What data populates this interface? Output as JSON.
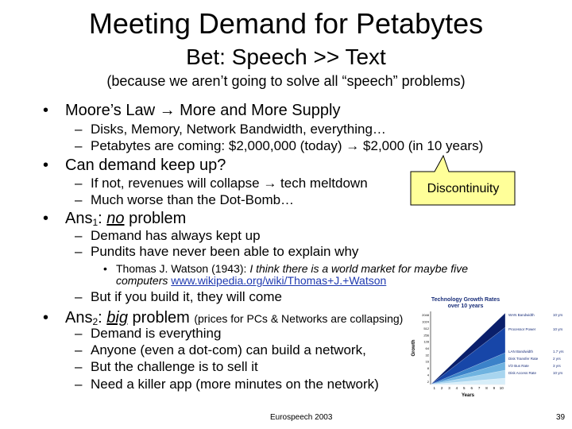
{
  "slide": {
    "title": "Meeting Demand for Petabytes",
    "subtitle": "Bet: Speech >> Text",
    "note": "(because we aren’t going to solve all “speech” problems)"
  },
  "bullets": [
    {
      "text": "Moore’s Law → More and More Supply",
      "subs": [
        "Disks, Memory, Network Bandwidth, everything…",
        "Petabytes are coming: $2,000,000 (today) → $2,000 (in 10 years)"
      ]
    },
    {
      "text": "Can demand keep up?",
      "subs": [
        "If not, revenues will collapse → tech meltdown",
        "Much worse than the Dot-Bomb…"
      ]
    },
    {
      "prefix": "Ans",
      "sub": "1",
      "mid": ": ",
      "emph": "no",
      "suffix": " problem",
      "subs": [
        "Demand has always kept up",
        "Pundits have never been able to explain why"
      ],
      "subsub": {
        "lead": "Thomas J. Watson (1943): ",
        "quote_line1": "I think there is a world market for maybe five",
        "quote_line2": "computers",
        "link": "www.wikipedia.org/wiki/Thomas+J.+Watson"
      },
      "last_sub": "But if you build it, they will come"
    },
    {
      "prefix": "Ans",
      "sub": "2",
      "mid": ": ",
      "emph": "big",
      "suffix": " problem",
      "aside": "(prices for PCs & Networks are collapsing)",
      "subs": [
        "Demand is everything",
        "Anyone (even a dot-com) can build a network,",
        "But the challenge is to sell it",
        "Need a killer app (more minutes on the network)"
      ]
    }
  ],
  "callout": {
    "text": "Discontinuity",
    "fill": "#ffff99",
    "stroke": "#000000"
  },
  "chart_data": {
    "type": "area",
    "title": "Technology Growth Rates over 10 years",
    "xlabel": "Years",
    "ylabel": "Growth",
    "x": [
      1,
      2,
      3,
      4,
      5,
      6,
      7,
      8,
      9,
      10
    ],
    "y_ticks": [
      "2",
      "4",
      "8",
      "16",
      "32",
      "64",
      "128",
      "256",
      "512",
      "1024",
      "2048"
    ],
    "yscale": "log2",
    "series": [
      {
        "name": "WAN Bandwidth",
        "rate": "10 yrs",
        "color": "#0a1f6b"
      },
      {
        "name": "Processor Power",
        "rate": "10 yrs",
        "color": "#1746a8"
      },
      {
        "name": "LAN Bandwidth",
        "rate": "1.7 yrs",
        "color": "#3b82c9"
      },
      {
        "name": "Disk Transfer Rate",
        "rate": "2 yrs",
        "color": "#6fb3e0"
      },
      {
        "name": "I/O Bus Rate",
        "rate": "3 yrs",
        "color": "#a8d5ef"
      },
      {
        "name": "Disk Access Rate",
        "rate": "10 yrs",
        "color": "#d8eef9"
      }
    ]
  },
  "footer": {
    "center": "Eurospeech 2003",
    "page": "39"
  }
}
